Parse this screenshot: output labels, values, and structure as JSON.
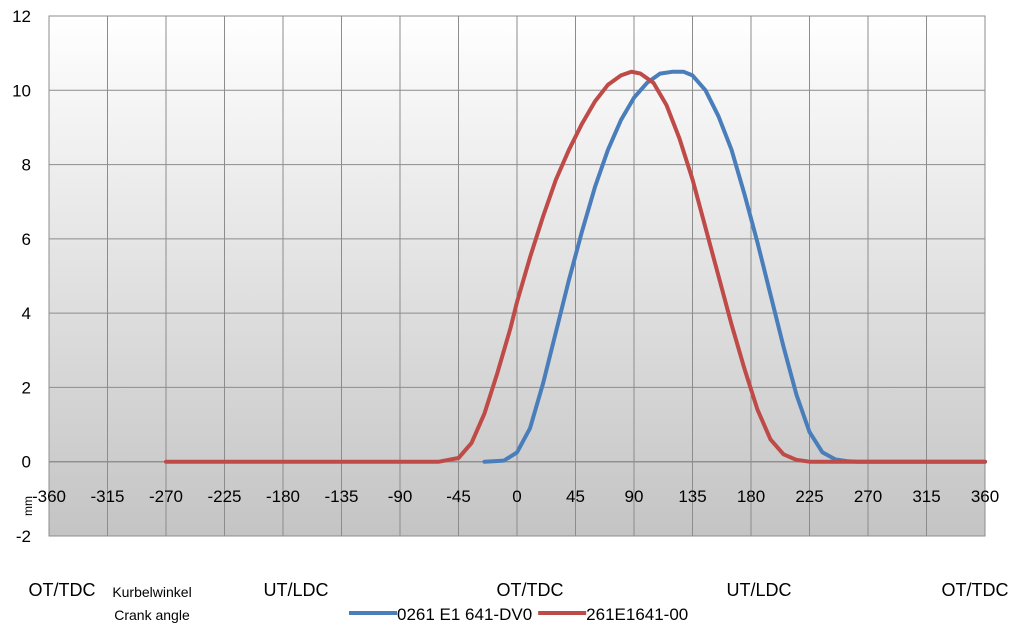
{
  "chart_data": {
    "type": "line",
    "ylabel": "mm",
    "ylim": [
      -2,
      12
    ],
    "yticks": [
      -2,
      0,
      2,
      4,
      6,
      8,
      10,
      12
    ],
    "xlim": [
      -360,
      360
    ],
    "xticks": [
      -360,
      -315,
      -270,
      -225,
      -180,
      -135,
      -90,
      -45,
      0,
      45,
      90,
      135,
      180,
      225,
      270,
      315,
      360
    ],
    "grid": true,
    "xlabel_de": "Kurbelwinkel",
    "xlabel_en": "Crank angle",
    "position_markers": [
      {
        "label": "OT/TDC",
        "angle": -360
      },
      {
        "label": "UT/LDC",
        "angle": -180
      },
      {
        "label": "OT/TDC",
        "angle": 0
      },
      {
        "label": "UT/LDC",
        "angle": 180
      },
      {
        "label": "OT/TDC",
        "angle": 360
      }
    ],
    "legend_position": "bottom",
    "series": [
      {
        "name": "0261 E1 641-DV0",
        "color": "#4a7ebb",
        "x": [
          -25,
          -10,
          0,
          10,
          20,
          30,
          40,
          50,
          60,
          70,
          80,
          90,
          100,
          110,
          120,
          128,
          135,
          145,
          155,
          165,
          175,
          185,
          195,
          205,
          215,
          225,
          235,
          245,
          255,
          262,
          270,
          290,
          320,
          360
        ],
        "y": [
          0,
          0.03,
          0.25,
          0.9,
          2.1,
          3.5,
          4.9,
          6.2,
          7.4,
          8.4,
          9.2,
          9.8,
          10.2,
          10.45,
          10.5,
          10.5,
          10.4,
          10.0,
          9.3,
          8.4,
          7.2,
          5.9,
          4.5,
          3.1,
          1.8,
          0.8,
          0.25,
          0.06,
          0.01,
          0,
          0,
          0,
          0,
          0
        ]
      },
      {
        "name": "261E1641-00",
        "color": "#be4b48",
        "x": [
          -270,
          -200,
          -100,
          -60,
          -45,
          -35,
          -25,
          -15,
          -5,
          0,
          10,
          20,
          30,
          40,
          50,
          60,
          70,
          80,
          88,
          95,
          105,
          115,
          125,
          135,
          145,
          155,
          165,
          175,
          185,
          195,
          205,
          215,
          225,
          235,
          245,
          270,
          300,
          330,
          360
        ],
        "y": [
          0,
          0,
          0,
          0,
          0.1,
          0.5,
          1.3,
          2.4,
          3.6,
          4.3,
          5.5,
          6.6,
          7.6,
          8.4,
          9.1,
          9.7,
          10.15,
          10.4,
          10.5,
          10.45,
          10.2,
          9.6,
          8.7,
          7.6,
          6.3,
          5.0,
          3.7,
          2.5,
          1.4,
          0.6,
          0.2,
          0.05,
          0,
          0,
          0,
          0,
          0,
          0,
          0
        ]
      }
    ]
  }
}
